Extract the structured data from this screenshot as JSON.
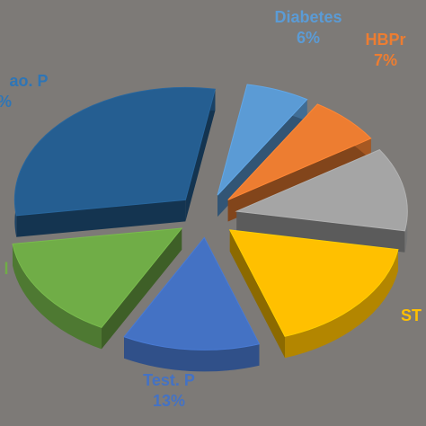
{
  "chart_data": {
    "type": "pie",
    "title": "",
    "exploded": true,
    "three_d": true,
    "slices": [
      {
        "name": "Diabetes",
        "label": "Diabetes",
        "pct_label": "6%",
        "value": 6,
        "color": "#5b9bd5"
      },
      {
        "name": "HBPr",
        "label": "HBPr",
        "pct_label": "7%",
        "value": 7,
        "color": "#ed7d31"
      },
      {
        "name": "",
        "label": "",
        "pct_label": "",
        "value": 12,
        "color": "#a5a5a5"
      },
      {
        "name": "ST",
        "label": "ST",
        "pct_label": "",
        "value": 17,
        "color": "#ffc000"
      },
      {
        "name": "Test. P",
        "label": "Test. P",
        "pct_label": "13%",
        "value": 13,
        "color": "#4472c4"
      },
      {
        "name": "",
        "label": "l",
        "pct_label": "",
        "value": 15,
        "color": "#70ad47"
      },
      {
        "name": "ao. P",
        "label": "ao. P",
        "pct_label": "%",
        "value": 30,
        "color": "#255e91"
      }
    ]
  }
}
